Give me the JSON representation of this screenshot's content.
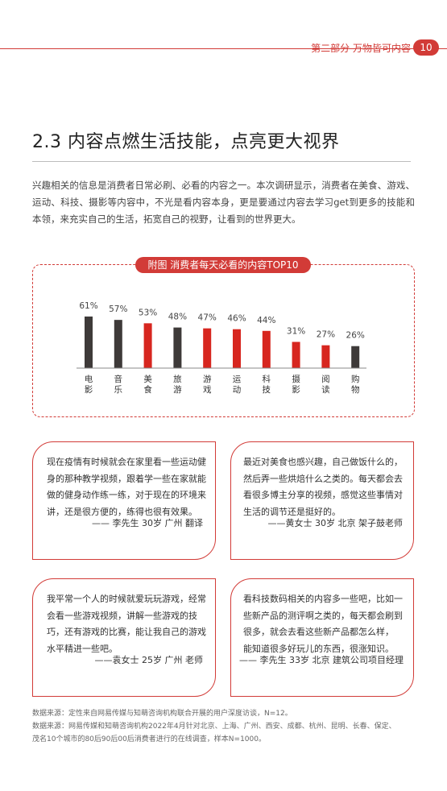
{
  "header": {
    "section": "第二部分  万物皆可内容",
    "page_number": "10"
  },
  "title": "2.3 内容点燃生活技能，点亮更大视界",
  "intro": "兴趣相关的信息是消费者日常必刷、必看的内容之一。本次调研显示，消费者在美食、游戏、运动、科技、摄影等内容中，不光是看内容本身，更是要通过内容去学习get到更多的技能和本领，来充实自己的生活，拓宽自己的视野，让看到的世界更大。",
  "chart_data": {
    "type": "bar",
    "title": "附图 消费者每天必看的内容TOP10",
    "categories": [
      "电影",
      "音乐",
      "美食",
      "旅游",
      "游戏",
      "运动",
      "科技",
      "摄影",
      "阅读",
      "购物"
    ],
    "values": [
      61,
      57,
      53,
      48,
      47,
      46,
      44,
      31,
      27,
      26
    ],
    "value_labels": [
      "61%",
      "57%",
      "53%",
      "48%",
      "47%",
      "46%",
      "44%",
      "31%",
      "27%",
      "26%"
    ],
    "bar_colors": [
      "#3e3a39",
      "#3e3a39",
      "#d7261f",
      "#3e3a39",
      "#d7261f",
      "#d7261f",
      "#d7261f",
      "#d7261f",
      "#d7261f",
      "#3e3a39"
    ],
    "ylim": [
      0,
      100
    ],
    "xlabel": "",
    "ylabel": ""
  },
  "quotes": [
    {
      "lines": [
        "现在疫情有时候就会在家里看一些运动健",
        "身的那种教学视频，跟着学一些在家就能",
        "做的健身动作练一练，对于现在的环境来",
        "讲，还是很方便的，练得也很有效果。"
      ],
      "signature": "—— 李先生  30岁  广州  翻译"
    },
    {
      "lines": [
        "最近对美食也感兴趣，自己做饭什么的，",
        "然后弄一些烘焙什么之类的。每天都会去",
        "看很多博主分享的视频，感觉这些事情对",
        "生活的调节还是挺好的。"
      ],
      "signature": "——黄女士  30岁  北京  架子鼓老师"
    },
    {
      "lines": [
        "我平常一个人的时候就爱玩玩游戏，经常",
        "会看一些游戏视频，讲解一些游戏的技",
        "巧，还有游戏的比赛，能让我自己的游戏",
        "水平精进一些吧。"
      ],
      "signature": "——袁女士  25岁  广州  老师"
    },
    {
      "lines": [
        "看科技数码相关的内容多一些吧，比如一",
        "些新产品的测评啊之类的，每天都会刷到",
        "很多，就会去看这些新产品都怎么样，",
        "能知道很多好玩儿的东西，很涨知识。"
      ],
      "signature": "—— 李先生  33岁  北京  建筑公司项目经理"
    }
  ],
  "sources": [
    "数据来源：定性来自网易传媒与知萌咨询机构联合开展的用户深度访谈，N=12。",
    "数据来源：网易传媒和知萌咨询机构2022年4月针对北京、上海、广州、西安、成都、杭州、昆明、长春、保定、",
    "茂名10个城市的80后90后00后消费者进行的在线调查，样本N=1000。"
  ]
}
